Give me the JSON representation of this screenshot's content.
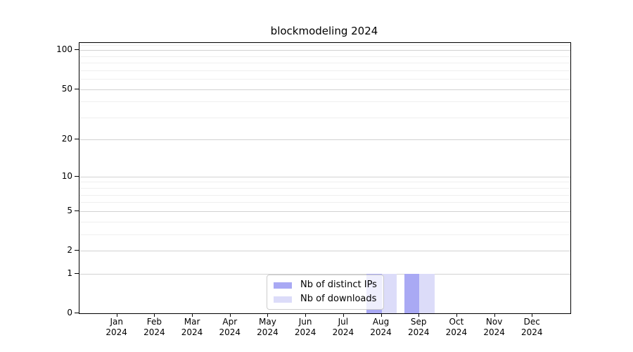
{
  "chart_data": {
    "type": "bar",
    "title": "blockmodeling 2024",
    "categories": [
      "Jan",
      "Feb",
      "Mar",
      "Apr",
      "May",
      "Jun",
      "Jul",
      "Aug",
      "Sep",
      "Oct",
      "Nov",
      "Dec"
    ],
    "category_year": "2024",
    "series": [
      {
        "name": "Nb of distinct IPs",
        "key": "distinct-ips",
        "color": "#a9a9f4",
        "values": [
          0,
          0,
          0,
          0,
          0,
          0,
          0,
          1,
          1,
          0,
          0,
          0
        ]
      },
      {
        "name": "Nb of downloads",
        "key": "downloads",
        "color": "#dcdcf9",
        "values": [
          0,
          0,
          0,
          0,
          0,
          0,
          0,
          1,
          1,
          0,
          0,
          0
        ]
      }
    ],
    "yscale": "log1p",
    "ylim": [
      0,
      113.5
    ],
    "yticks": [
      0,
      1,
      2,
      5,
      10,
      20,
      50,
      100
    ],
    "yticks_minor": [
      3,
      4,
      6,
      7,
      8,
      9,
      30,
      40,
      60,
      70,
      80,
      90,
      110
    ],
    "grid": "horizontal",
    "legend": {
      "position": "inside-bottom-center",
      "entries": [
        "Nb of distinct IPs",
        "Nb of downloads"
      ]
    },
    "xlabel": "",
    "ylabel": "",
    "colors": {
      "background": "#ffffff",
      "axis": "#000000",
      "text": "#000000",
      "grid_major": "#d2d2d2",
      "grid_minor": "#efefef",
      "legend_border": "#cccccc",
      "legend_bg": "rgba(255,255,255,0.8)"
    }
  }
}
